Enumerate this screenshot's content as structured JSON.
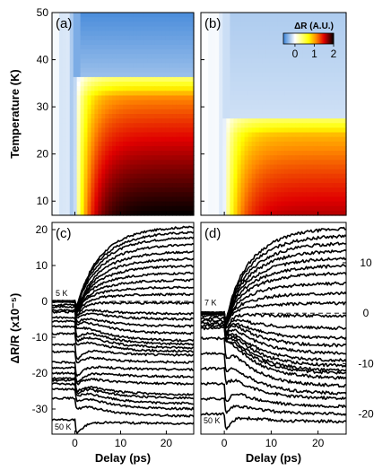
{
  "chart_data": [
    {
      "panel": "(a)",
      "type": "heatmap",
      "ylabel": "Temperature (K)",
      "xlim": [
        -5,
        26
      ],
      "ylim": [
        7,
        50
      ],
      "yticks": [
        10,
        20,
        30,
        40,
        50
      ],
      "colorscale": {
        "title": "ΔR (A.U.)",
        "ticks": [
          "0",
          "1",
          "2"
        ],
        "range": [
          -0.6,
          2.0
        ],
        "colors": [
          "#3b83d8",
          "#ffffff",
          "#ffff00",
          "#ff8a00",
          "#e00000",
          "#000000"
        ]
      },
      "features": {
        "onset_delay_ps": 0,
        "transition_temperature_K": 36,
        "max_signal": 2.0,
        "min_signal": -0.5,
        "pre_signal": -0.1
      }
    },
    {
      "panel": "(b)",
      "type": "heatmap",
      "xlim": [
        -5,
        26
      ],
      "ylim": [
        7,
        50
      ],
      "features": {
        "onset_delay_ps": 0,
        "transition_temperature_K": 28,
        "max_signal": 1.6,
        "min_signal": -0.2,
        "pre_signal": -0.02
      }
    },
    {
      "panel": "(c)",
      "type": "line",
      "xlabel": "Delay (ps)",
      "ylabel": "ΔR/R (x10⁻⁵)",
      "xlim": [
        -5,
        26
      ],
      "ylim": [
        -37,
        22
      ],
      "xticks": [
        0,
        10,
        20
      ],
      "yticks": [
        20,
        10,
        0,
        -10,
        -20,
        -30
      ],
      "annotations": [
        "5 K",
        "50 K"
      ],
      "dashed_zero_line": true,
      "series_final_values": [
        21,
        19.5,
        18,
        16,
        14,
        12,
        10,
        8,
        6,
        4,
        2,
        -0.5,
        -3.5,
        -5,
        -7,
        -9,
        -11,
        -12,
        -13,
        -14,
        -15,
        -17,
        -19,
        -21,
        -23,
        -26,
        -27,
        -28.5,
        -30,
        -32,
        -34
      ],
      "series_start_values": [
        0,
        0,
        0,
        0,
        0,
        0,
        0,
        0,
        0,
        0,
        0,
        0,
        -1,
        -1.5,
        -2.5,
        -3,
        -4.5,
        -5.5,
        -7,
        -9,
        -12,
        -14,
        -17,
        -18.5,
        -20,
        -21.5,
        -22,
        -23,
        -24.5,
        -27,
        -33
      ]
    },
    {
      "panel": "(d)",
      "type": "line",
      "xlabel": "Delay (ps)",
      "xlim": [
        -5,
        26
      ],
      "ylim": [
        -24,
        18
      ],
      "xticks": [
        0,
        10,
        20
      ],
      "yticks": [
        10,
        0,
        -10,
        -20
      ],
      "annotations": [
        "7 K",
        "50 K"
      ],
      "dashed_zero_line": true,
      "series_final_values": [
        17,
        15.5,
        14,
        12.5,
        11,
        9.5,
        8,
        6,
        4,
        2,
        -0.5,
        -3,
        -5,
        -6.5,
        -8,
        -9.5,
        -10.5,
        -11.5,
        -12,
        -13,
        -14.5,
        -16,
        -17,
        -18.5,
        -20,
        -21.5
      ],
      "series_start_values": [
        0,
        0,
        0,
        0,
        0,
        0,
        0,
        0,
        0,
        0,
        0,
        0,
        0,
        0,
        -0.5,
        -1,
        -1.5,
        -2,
        -2.5,
        -3,
        -5,
        -8,
        -11,
        -14,
        -17,
        -20
      ]
    }
  ]
}
